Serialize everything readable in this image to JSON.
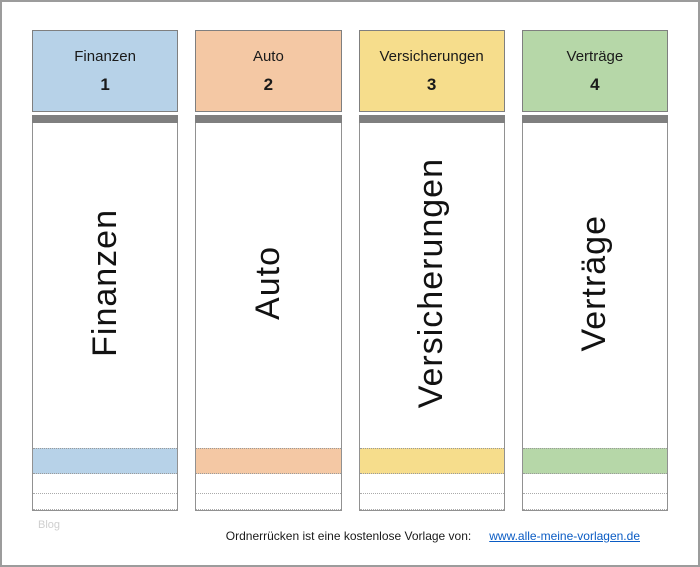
{
  "page": {
    "watermark": "Blog",
    "footer_text": "Ordnerrücken ist eine kostenlose Vorlage von:",
    "footer_link": "www.alle-meine-vorlagen.de"
  },
  "colors": {
    "divider_bar": "#7f7f7f",
    "link": "#0b5cc4"
  },
  "folders": [
    {
      "name": "Finanzen",
      "number": "1",
      "color": "#b7d2e8"
    },
    {
      "name": "Auto",
      "number": "2",
      "color": "#f4c8a4"
    },
    {
      "name": "Versicherungen",
      "number": "3",
      "color": "#f6dd8c"
    },
    {
      "name": "Verträge",
      "number": "4",
      "color": "#b6d7a8"
    }
  ]
}
